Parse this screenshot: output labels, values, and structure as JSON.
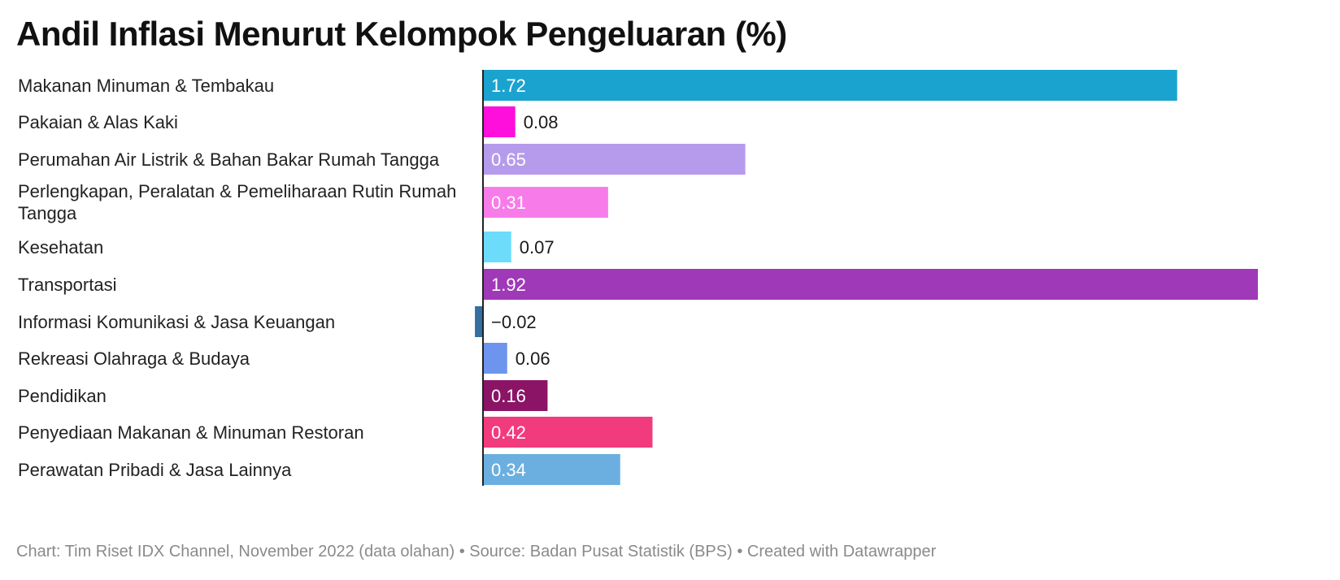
{
  "title": "Andil Inflasi Menurut Kelompok Pengeluaran (%)",
  "footer": {
    "chart_credit": "Chart: Tim Riset IDX Channel, November 2022 (data olahan)",
    "source": "Source: Badan Pusat Statistik (BPS)",
    "created": "Created with Datawrapper"
  },
  "chart_data": {
    "type": "bar",
    "orientation": "horizontal",
    "title": "Andil Inflasi Menurut Kelompok Pengeluaran (%)",
    "categories": [
      "Makanan Minuman & Tembakau",
      "Pakaian & Alas Kaki",
      "Perumahan Air Listrik & Bahan Bakar Rumah Tangga",
      "Perlengkapan, Peralatan & Pemeliharaan Rutin Rumah Tangga",
      "Kesehatan",
      "Transportasi",
      "Informasi Komunikasi & Jasa Keuangan",
      "Rekreasi Olahraga & Budaya",
      "Pendidikan",
      "Penyediaan Makanan & Minuman Restoran",
      "Perawatan Pribadi & Jasa Lainnya"
    ],
    "values": [
      1.72,
      0.08,
      0.65,
      0.31,
      0.07,
      1.92,
      -0.02,
      0.06,
      0.16,
      0.42,
      0.34
    ],
    "value_labels": [
      "1.72",
      "0.08",
      "0.65",
      "0.31",
      "0.07",
      "1.92",
      "−0.02",
      "0.06",
      "0.16",
      "0.42",
      "0.34"
    ],
    "colors": [
      "#1ba3d0",
      "#ff0fdb",
      "#b69bec",
      "#f77cea",
      "#6ddcfa",
      "#9f39b8",
      "#336fa0",
      "#6d95ee",
      "#8b1467",
      "#f23b7d",
      "#6aafe0"
    ],
    "xlim": [
      0,
      1.92
    ],
    "grid": false
  }
}
